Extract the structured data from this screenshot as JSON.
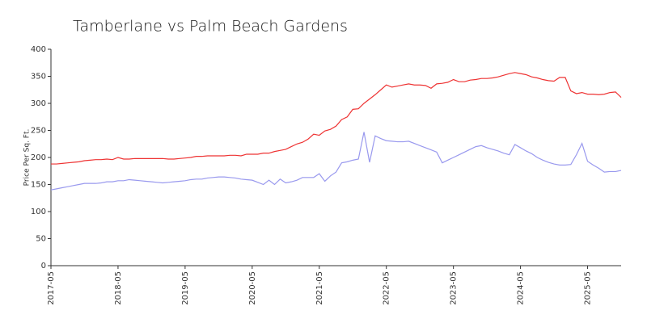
{
  "chart_data": {
    "type": "line",
    "title": "Tamberlane vs Palm Beach Gardens",
    "y_label": "Price Per Sq. Ft.",
    "categories": [
      "2017-05",
      null,
      null,
      null,
      null,
      null,
      null,
      null,
      null,
      null,
      null,
      null,
      "2018-05",
      null,
      null,
      null,
      null,
      null,
      null,
      null,
      null,
      null,
      null,
      null,
      "2019-05",
      null,
      null,
      null,
      null,
      null,
      null,
      null,
      null,
      null,
      null,
      null,
      "2020-05",
      null,
      null,
      null,
      null,
      null,
      null,
      null,
      null,
      null,
      null,
      null,
      "2021-05",
      null,
      null,
      null,
      null,
      null,
      null,
      null,
      null,
      null,
      null,
      null,
      "2022-05",
      null,
      null,
      null,
      null,
      null,
      null,
      null,
      null,
      null,
      null,
      null,
      "2023-05",
      null,
      null,
      null,
      null,
      null,
      null,
      null,
      null,
      null,
      null,
      null,
      "2024-05",
      null,
      null,
      null,
      null,
      null,
      null,
      null,
      null,
      null,
      null,
      null,
      "2025-05",
      null,
      null,
      null,
      null,
      null,
      null
    ],
    "series": [
      {
        "color": "#ee3333",
        "values": [
          188,
          188,
          189,
          190,
          191,
          192,
          194,
          195,
          196,
          196,
          197,
          196,
          200,
          197,
          197,
          198,
          198,
          198,
          198,
          198,
          198,
          197,
          197,
          198,
          199,
          200,
          202,
          202,
          203,
          203,
          203,
          203,
          204,
          204,
          203,
          206,
          206,
          206,
          208,
          208,
          211,
          213,
          215,
          220,
          225,
          228,
          234,
          243,
          241,
          249,
          252,
          258,
          270,
          275,
          289,
          290,
          300,
          308,
          316,
          325,
          334,
          330,
          332,
          334,
          336,
          334,
          334,
          333,
          328,
          336,
          337,
          339,
          344,
          340,
          340,
          343,
          344,
          346,
          346,
          347,
          349,
          352,
          355,
          357,
          355,
          353,
          349,
          347,
          344,
          342,
          341,
          348,
          348,
          323,
          318,
          320,
          317,
          317,
          316,
          317,
          320,
          321,
          311
        ]
      },
      {
        "color": "#9999ee",
        "values": [
          140,
          142,
          144,
          146,
          148,
          150,
          152,
          152,
          152,
          153,
          155,
          155,
          157,
          157,
          159,
          158,
          157,
          156,
          155,
          154,
          153,
          154,
          155,
          156,
          157,
          159,
          160,
          160,
          162,
          163,
          164,
          164,
          163,
          162,
          160,
          159,
          158,
          154,
          150,
          158,
          150,
          160,
          153,
          155,
          158,
          163,
          163,
          163,
          170,
          156,
          166,
          173,
          190,
          192,
          195,
          197,
          247,
          191,
          240,
          235,
          231,
          230,
          229,
          229,
          230,
          226,
          222,
          218,
          214,
          210,
          190,
          195,
          200,
          205,
          210,
          215,
          220,
          222,
          218,
          215,
          212,
          208,
          205,
          224,
          218,
          212,
          207,
          200,
          195,
          191,
          188,
          186,
          186,
          187,
          205,
          226,
          193,
          186,
          180,
          173,
          174,
          174,
          176
        ]
      }
    ],
    "ylim": [
      0,
      400
    ],
    "yticks": [
      0,
      50,
      100,
      150,
      200,
      250,
      300,
      350,
      400
    ]
  }
}
